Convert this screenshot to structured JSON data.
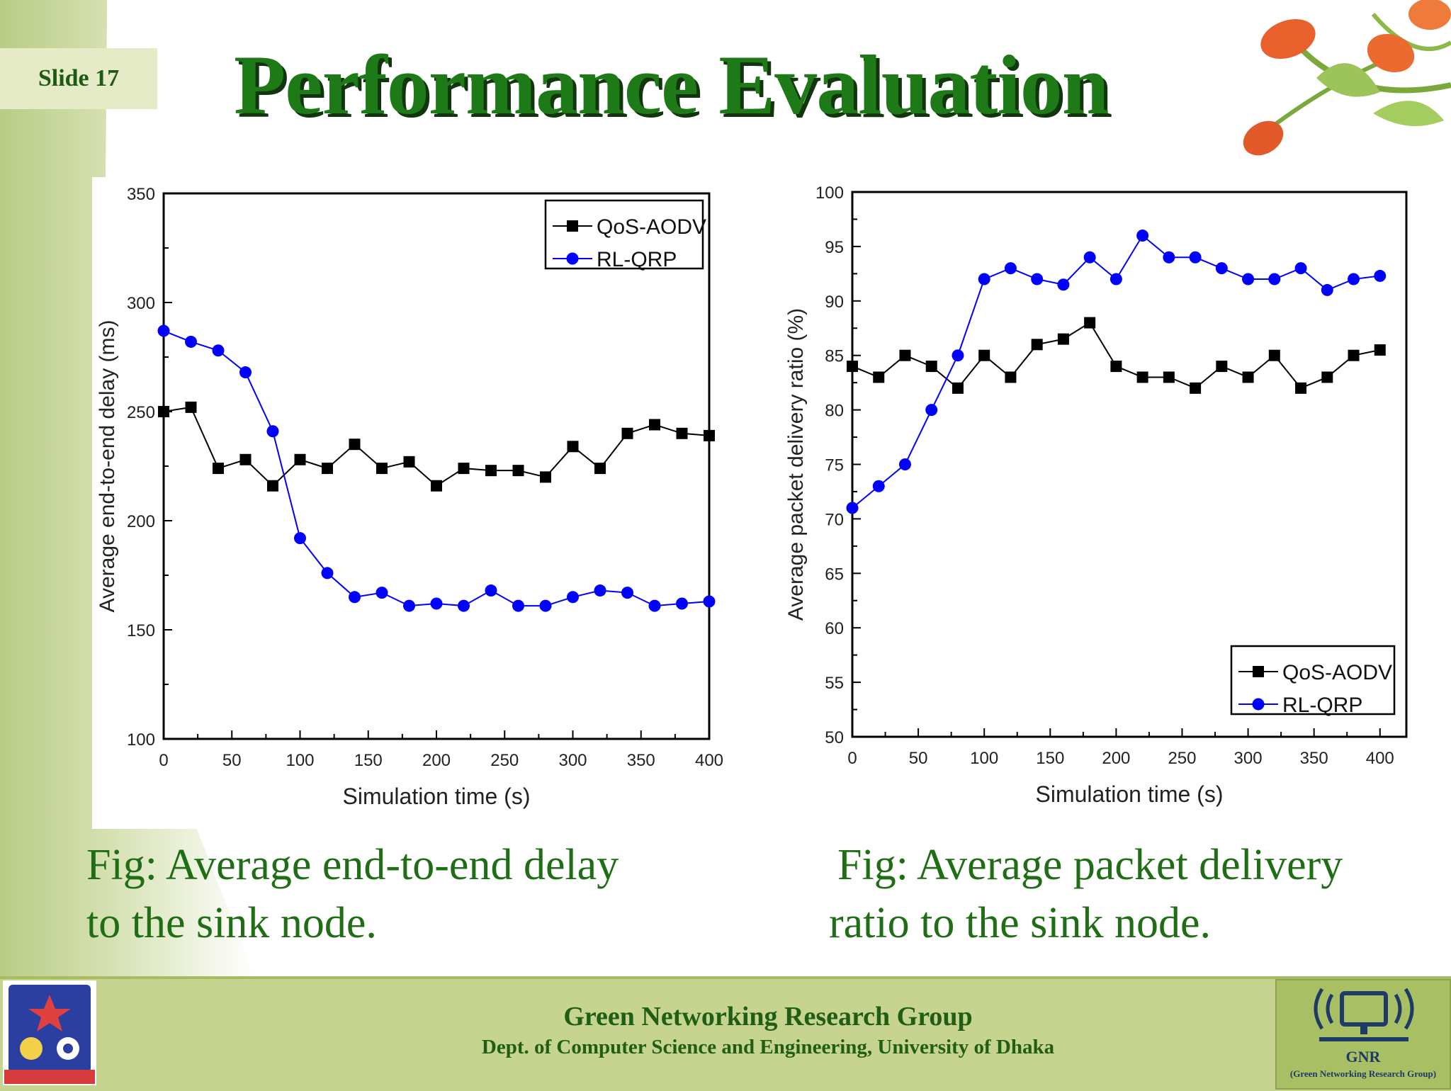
{
  "slide": {
    "label": "Slide 17",
    "title": "Performance Evaluation"
  },
  "captions": {
    "left_line1": "Fig: Average end-to-end delay",
    "left_line2": "to the sink node.",
    "right_line1": "Fig: Average packet delivery",
    "right_line2": "ratio to the sink node."
  },
  "footer": {
    "line1": "Green Networking Research Group",
    "line2": "Dept. of Computer Science and Engineering, University of Dhaka",
    "gnr_title": "GNR",
    "gnr_subtitle": "(Green Networking Research Group)"
  },
  "colors": {
    "title": "#1d7a16",
    "qos_series": "#000000",
    "rl_series": "#0000ff"
  },
  "chart_data": [
    {
      "type": "line",
      "xlabel": "Simulation time (s)",
      "ylabel": "Average end-to-end delay (ms)",
      "xlim": [
        0,
        400
      ],
      "ylim": [
        100,
        350
      ],
      "xticks": [
        0,
        50,
        100,
        150,
        200,
        250,
        300,
        350,
        400
      ],
      "yticks": [
        100,
        150,
        200,
        250,
        300,
        350
      ],
      "legend_position": "top-right",
      "x": [
        0,
        20,
        40,
        60,
        80,
        100,
        120,
        140,
        160,
        180,
        200,
        220,
        240,
        260,
        280,
        300,
        320,
        340,
        360,
        380,
        400
      ],
      "series": [
        {
          "name": "QoS-AODV",
          "marker": "square",
          "color": "#000000",
          "values": [
            250,
            252,
            224,
            228,
            216,
            228,
            224,
            235,
            224,
            227,
            216,
            224,
            223,
            223,
            220,
            234,
            224,
            240,
            244,
            240,
            239
          ]
        },
        {
          "name": "RL-QRP",
          "marker": "circle",
          "color": "#0000ff",
          "values": [
            287,
            282,
            278,
            268,
            241,
            192,
            176,
            165,
            167,
            161,
            162,
            161,
            168,
            161,
            161,
            165,
            168,
            167,
            161,
            162,
            163
          ]
        }
      ]
    },
    {
      "type": "line",
      "xlabel": "Simulation time (s)",
      "ylabel": "Average packet delivery ratio (%)",
      "xlim": [
        0,
        420
      ],
      "ylim": [
        50,
        100
      ],
      "xticks": [
        0,
        50,
        100,
        150,
        200,
        250,
        300,
        350,
        400
      ],
      "yticks": [
        50,
        55,
        60,
        65,
        70,
        75,
        80,
        85,
        90,
        95,
        100
      ],
      "legend_position": "bottom-right",
      "x": [
        0,
        20,
        40,
        60,
        80,
        100,
        120,
        140,
        160,
        180,
        200,
        220,
        240,
        260,
        280,
        300,
        320,
        340,
        360,
        380,
        400
      ],
      "series": [
        {
          "name": "QoS-AODV",
          "marker": "square",
          "color": "#000000",
          "values": [
            84,
            83,
            85,
            84,
            82,
            85,
            83,
            86,
            86.5,
            88,
            84,
            83,
            83,
            82,
            84,
            83,
            85,
            82,
            83,
            85,
            85.5
          ]
        },
        {
          "name": "RL-QRP",
          "marker": "circle",
          "color": "#0000ff",
          "values": [
            71,
            73,
            75,
            80,
            85,
            92,
            93,
            92,
            91.5,
            94,
            92,
            96,
            94,
            94,
            93,
            92,
            92,
            93,
            91,
            92,
            92.3
          ]
        }
      ]
    }
  ]
}
